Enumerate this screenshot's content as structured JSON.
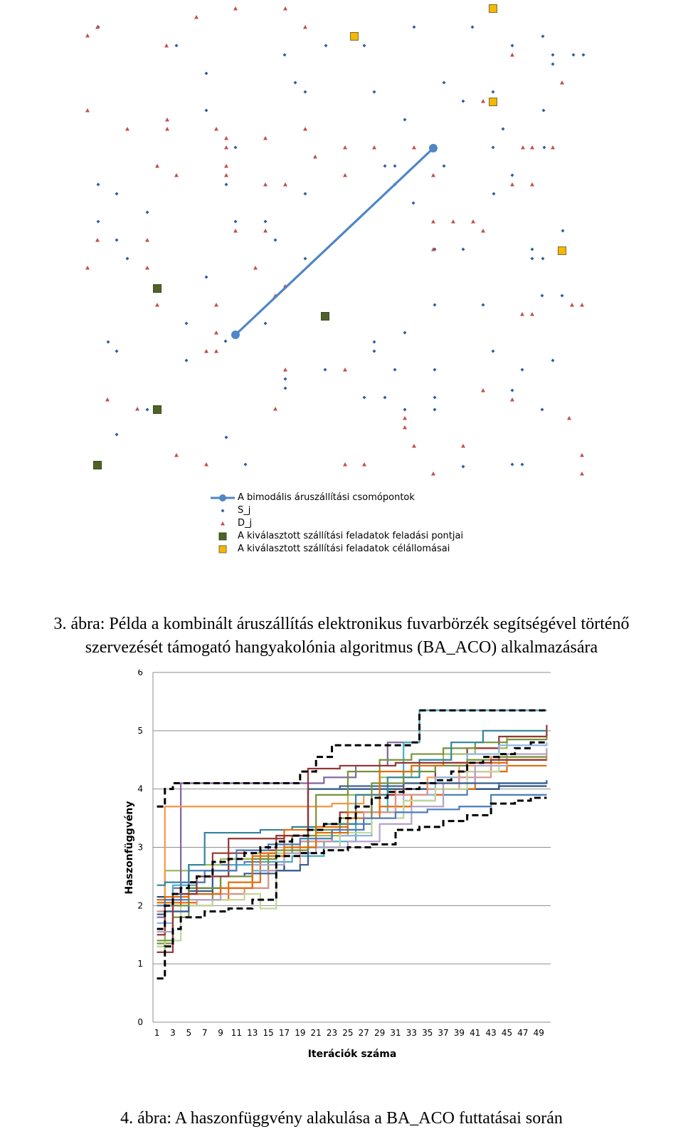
{
  "figure3": {
    "caption": "3. ábra: Példa a kombinált áruszállítás elektronikus fuvarbörzék segítségével történő szervezését támogató hangyakolónia algoritmus (BA_ACO) alkalmazására",
    "caption_line1": "3. ábra: Példa a kombinált áruszállítás elektronikus fuvarbörzék segítségével történő",
    "caption_line2": "szervezését támogató hangyakolónia algoritmus (BA_ACO) alkalmazására",
    "legend": {
      "bimodal": "A bimodális áruszállítási csomópontok",
      "s": "S_j",
      "d": "D_j",
      "pickup": "A kiválasztott szállítási feladatok feladási pontjai",
      "dest": "A kiválasztott szállítási feladatok célállomásai"
    },
    "colors": {
      "bimodal": "#4f86c6",
      "s": "#2e5f9e",
      "d": "#c0504d",
      "pickup": "#4f6228",
      "dest": "#f5b800"
    }
  },
  "chart_data": {
    "type": "line",
    "xlabel": "Iterációk száma",
    "ylabel": "Haszonfüggvény",
    "ylim": [
      0,
      6
    ],
    "yticks": [
      "0",
      "1",
      "2",
      "3",
      "4",
      "5",
      "6"
    ],
    "xlim": [
      1,
      50
    ],
    "xticks": [
      "1",
      "3",
      "5",
      "7",
      "9",
      "11",
      "13",
      "15",
      "17",
      "19",
      "21",
      "23",
      "25",
      "27",
      "29",
      "31",
      "33",
      "35",
      "37",
      "39",
      "41",
      "43",
      "45",
      "47",
      "49"
    ],
    "grid": true,
    "series_note": "many colored runs; two dashed black runs",
    "dashed_series": [
      {
        "x": [
          1,
          2,
          3,
          4,
          7,
          10,
          13,
          16,
          19,
          22,
          25,
          28,
          31,
          34,
          37,
          40,
          43,
          46,
          48,
          50
        ],
        "y": [
          0.75,
          1.3,
          1.6,
          1.8,
          1.9,
          1.95,
          2.1,
          2.85,
          2.9,
          2.95,
          3.0,
          3.05,
          3.3,
          3.35,
          3.45,
          3.55,
          3.75,
          3.8,
          3.85,
          3.85
        ]
      },
      {
        "x": [
          1,
          2,
          3,
          4,
          5,
          6,
          8,
          10,
          12,
          14,
          16,
          18,
          20,
          22,
          24,
          26,
          28,
          30,
          32,
          34,
          36,
          38,
          40,
          42,
          44,
          46,
          48,
          50
        ],
        "y": [
          1.6,
          2.0,
          2.2,
          2.3,
          2.4,
          2.5,
          2.75,
          2.8,
          2.9,
          3.0,
          3.1,
          3.2,
          3.3,
          3.4,
          3.5,
          3.7,
          3.85,
          3.95,
          4.0,
          4.1,
          4.15,
          4.3,
          4.45,
          4.55,
          4.6,
          4.7,
          4.8,
          4.82
        ]
      },
      {
        "x": [
          1,
          2,
          3,
          18,
          19,
          21,
          23,
          33,
          34,
          50
        ],
        "y": [
          3.7,
          4.0,
          4.1,
          4.1,
          4.3,
          4.55,
          4.75,
          4.8,
          5.35,
          5.35
        ]
      }
    ],
    "colored_series": [
      {
        "color": "#4f81bd",
        "x": [
          1,
          3,
          5,
          8,
          12,
          16,
          20,
          24,
          28,
          32,
          36,
          40,
          44,
          50
        ],
        "y": [
          1.9,
          2.1,
          2.6,
          2.7,
          2.75,
          2.9,
          3.0,
          3.4,
          3.6,
          3.8,
          3.9,
          4.0,
          4.1,
          4.15
        ]
      },
      {
        "color": "#c0504d",
        "x": [
          1,
          2,
          4,
          7,
          11,
          15,
          19,
          23,
          27,
          31,
          35,
          39,
          43,
          50
        ],
        "y": [
          1.3,
          2.0,
          2.4,
          2.6,
          2.8,
          2.9,
          3.1,
          3.3,
          3.5,
          3.9,
          4.1,
          4.3,
          4.5,
          4.6
        ]
      },
      {
        "color": "#9bbb59",
        "x": [
          1,
          2,
          5,
          9,
          13,
          17,
          21,
          25,
          29,
          33,
          37,
          41,
          45,
          50
        ],
        "y": [
          1.2,
          2.6,
          2.7,
          2.8,
          2.9,
          3.0,
          3.2,
          3.9,
          4.2,
          4.4,
          4.6,
          4.7,
          4.9,
          5.0
        ]
      },
      {
        "color": "#8064a2",
        "x": [
          1,
          2,
          3,
          4,
          18,
          22,
          26,
          30,
          34,
          38,
          42,
          46,
          50
        ],
        "y": [
          1.8,
          2.0,
          2.3,
          4.1,
          4.1,
          4.2,
          4.4,
          4.8,
          5.35,
          5.35,
          5.35,
          5.35,
          5.35
        ]
      },
      {
        "color": "#4bacc6",
        "x": [
          1,
          3,
          6,
          10,
          14,
          18,
          22,
          26,
          30,
          32,
          34,
          38,
          42,
          50
        ],
        "y": [
          2.0,
          2.35,
          2.5,
          2.7,
          2.75,
          2.85,
          3.1,
          3.6,
          4.0,
          4.8,
          5.35,
          5.35,
          5.35,
          5.35
        ]
      },
      {
        "color": "#f79646",
        "x": [
          1,
          2,
          4,
          7,
          11,
          15,
          19,
          23,
          27,
          31,
          35,
          39,
          43,
          50
        ],
        "y": [
          2.1,
          3.7,
          3.7,
          3.7,
          3.7,
          3.7,
          3.7,
          3.75,
          3.9,
          4.0,
          4.2,
          4.4,
          4.55,
          4.6
        ]
      },
      {
        "color": "#1f497d",
        "x": [
          1,
          3,
          5,
          9,
          13,
          17,
          20,
          24,
          28,
          32,
          36,
          40,
          44,
          50
        ],
        "y": [
          2.15,
          2.2,
          2.3,
          2.5,
          2.6,
          2.9,
          4.0,
          4.0,
          4.0,
          4.0,
          4.0,
          4.0,
          4.05,
          4.05
        ]
      },
      {
        "color": "#953735",
        "x": [
          1,
          2,
          4,
          8,
          12,
          16,
          20,
          24,
          28,
          32,
          36,
          40,
          44,
          50
        ],
        "y": [
          1.5,
          2.1,
          2.2,
          2.9,
          2.95,
          3.2,
          3.3,
          3.6,
          3.9,
          4.1,
          4.4,
          4.7,
          4.9,
          5.1
        ]
      },
      {
        "color": "#77933c",
        "x": [
          1,
          3,
          5,
          8,
          12,
          15,
          18,
          21,
          25,
          29,
          33,
          37,
          41,
          45,
          50
        ],
        "y": [
          1.35,
          1.8,
          2.0,
          2.2,
          2.3,
          2.9,
          3.2,
          3.9,
          4.3,
          4.5,
          4.6,
          4.7,
          4.8,
          4.85,
          4.9
        ]
      },
      {
        "color": "#31859c",
        "x": [
          1,
          2,
          5,
          7,
          10,
          14,
          18,
          22,
          26,
          30,
          34,
          38,
          42,
          50
        ],
        "y": [
          2.35,
          2.4,
          2.7,
          3.25,
          3.25,
          3.3,
          3.35,
          3.4,
          3.9,
          4.2,
          4.5,
          4.8,
          5.0,
          5.0
        ]
      },
      {
        "color": "#e46c0a",
        "x": [
          1,
          3,
          6,
          10,
          14,
          17,
          21,
          25,
          29,
          33,
          37,
          41,
          45,
          50
        ],
        "y": [
          2.05,
          2.05,
          2.1,
          2.4,
          2.9,
          3.3,
          3.35,
          3.6,
          3.7,
          3.9,
          4.0,
          4.3,
          4.4,
          4.4
        ]
      },
      {
        "color": "#8db3e2",
        "x": [
          1,
          3,
          5,
          9,
          13,
          16,
          20,
          24,
          28,
          32,
          36,
          40,
          44,
          50
        ],
        "y": [
          1.7,
          1.9,
          2.2,
          2.3,
          2.6,
          2.9,
          3.0,
          3.2,
          3.5,
          3.9,
          4.2,
          4.6,
          4.75,
          4.8
        ]
      },
      {
        "color": "#d99694",
        "x": [
          1,
          3,
          6,
          9,
          12,
          15,
          19,
          23,
          27,
          31,
          35,
          39,
          43,
          50
        ],
        "y": [
          1.9,
          2.0,
          2.1,
          2.2,
          2.3,
          2.6,
          3.1,
          3.3,
          3.6,
          3.9,
          4.0,
          4.2,
          4.5,
          4.55
        ]
      },
      {
        "color": "#c3d69b",
        "x": [
          1,
          2,
          4,
          8,
          12,
          14,
          16,
          20,
          24,
          28,
          32,
          36,
          40,
          44,
          50
        ],
        "y": [
          1.3,
          1.4,
          2.0,
          2.1,
          2.2,
          1.95,
          2.9,
          3.0,
          3.25,
          3.5,
          3.8,
          4.0,
          4.3,
          4.6,
          4.7
        ]
      },
      {
        "color": "#b3a2c7",
        "x": [
          1,
          3,
          5,
          9,
          13,
          17,
          21,
          25,
          29,
          33,
          37,
          41,
          45,
          50
        ],
        "y": [
          1.55,
          1.9,
          2.1,
          2.3,
          2.7,
          2.9,
          3.0,
          3.1,
          3.4,
          3.7,
          4.1,
          4.4,
          4.6,
          4.7
        ]
      },
      {
        "color": "#366092",
        "x": [
          1,
          2,
          5,
          8,
          12,
          16,
          19,
          20,
          24,
          28,
          32,
          36,
          40,
          50
        ],
        "y": [
          1.85,
          1.9,
          2.25,
          2.5,
          2.55,
          2.6,
          2.7,
          4.0,
          4.05,
          4.05,
          4.1,
          4.1,
          4.1,
          4.15
        ]
      },
      {
        "color": "#76923c",
        "x": [
          1,
          3,
          5,
          9,
          13,
          16,
          20,
          24,
          28,
          32,
          36,
          40,
          44,
          50
        ],
        "y": [
          1.4,
          2.0,
          2.3,
          2.5,
          2.8,
          2.95,
          3.3,
          3.5,
          4.1,
          4.3,
          4.4,
          4.5,
          4.55,
          4.55
        ]
      },
      {
        "color": "#e36c09",
        "x": [
          1,
          2,
          5,
          9,
          13,
          17,
          21,
          25,
          29,
          33,
          37,
          41,
          45,
          50
        ],
        "y": [
          2.1,
          2.15,
          2.2,
          2.3,
          2.85,
          3.0,
          3.25,
          3.5,
          4.3,
          4.4,
          4.45,
          4.45,
          4.5,
          4.5
        ]
      },
      {
        "color": "#943634",
        "x": [
          1,
          3,
          6,
          10,
          14,
          17,
          20,
          24,
          27,
          31,
          35,
          39,
          43,
          50
        ],
        "y": [
          1.2,
          2.2,
          2.5,
          3.15,
          3.15,
          3.2,
          4.35,
          4.4,
          4.4,
          4.45,
          4.45,
          4.45,
          4.5,
          4.5
        ]
      },
      {
        "color": "#4a7ebb",
        "x": [
          1,
          2,
          4,
          7,
          11,
          15,
          19,
          23,
          27,
          31,
          35,
          39,
          43,
          50
        ],
        "y": [
          2.0,
          2.1,
          2.4,
          2.6,
          2.95,
          3.05,
          3.15,
          3.3,
          3.5,
          3.6,
          3.65,
          3.7,
          3.9,
          3.9
        ]
      }
    ]
  }
}
